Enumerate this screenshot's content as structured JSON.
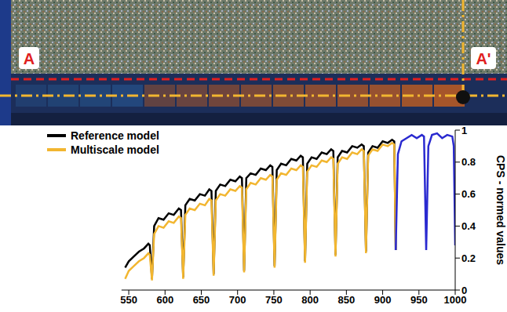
{
  "image": {
    "labels": [
      "A",
      "A'"
    ]
  },
  "chart_data": {
    "type": "line",
    "y_label": "CPS - normed values",
    "legend": "top-left",
    "grid": false,
    "xlim": [
      540,
      1000
    ],
    "xticks": [
      550,
      600,
      650,
      700,
      750,
      800,
      850,
      900,
      950,
      1000
    ],
    "ylim": [
      0,
      1
    ],
    "yticks": [
      0,
      0.2,
      0.4,
      0.6,
      0.8,
      1
    ],
    "x": [
      545,
      550,
      557,
      564,
      571,
      577,
      579,
      582,
      585,
      591,
      598,
      605,
      612,
      619,
      622,
      625,
      628,
      634,
      641,
      648,
      655,
      661,
      664,
      667,
      670,
      676,
      683,
      690,
      697,
      703,
      706,
      709,
      712,
      718,
      725,
      732,
      739,
      745,
      748,
      751,
      754,
      760,
      767,
      774,
      781,
      787,
      790,
      793,
      796,
      802,
      809,
      816,
      823,
      829,
      832,
      835,
      838,
      844,
      851,
      858,
      865,
      871,
      874,
      877,
      880,
      886,
      893,
      900,
      907,
      913,
      916,
      918,
      921,
      926,
      933,
      940,
      947,
      954,
      957,
      960,
      963,
      968,
      975,
      982,
      989,
      996,
      998,
      1000
    ],
    "series": [
      {
        "name": "Reference model",
        "color": "#000000",
        "values": [
          0.14,
          0.18,
          0.21,
          0.24,
          0.26,
          0.29,
          0.28,
          0.07,
          0.4,
          0.45,
          0.44,
          0.48,
          0.47,
          0.51,
          0.5,
          0.08,
          0.53,
          0.57,
          0.56,
          0.6,
          0.59,
          0.63,
          0.62,
          0.1,
          0.62,
          0.66,
          0.65,
          0.69,
          0.68,
          0.71,
          0.7,
          0.12,
          0.7,
          0.73,
          0.72,
          0.76,
          0.75,
          0.78,
          0.77,
          0.15,
          0.75,
          0.79,
          0.78,
          0.82,
          0.81,
          0.84,
          0.83,
          0.18,
          0.79,
          0.83,
          0.82,
          0.86,
          0.85,
          0.88,
          0.87,
          0.22,
          0.83,
          0.87,
          0.86,
          0.9,
          0.89,
          0.91,
          0.9,
          0.24,
          0.86,
          0.9,
          0.89,
          0.93,
          0.92,
          0.94,
          0.93,
          0.25,
          null,
          null,
          null,
          null,
          null,
          null,
          null,
          null,
          null,
          null,
          null,
          null,
          null,
          null,
          null,
          null
        ]
      },
      {
        "name": "Multiscale model",
        "color": "#f2b630",
        "values": [
          0.07,
          0.12,
          0.15,
          0.18,
          0.2,
          0.23,
          0.22,
          0.06,
          0.35,
          0.4,
          0.39,
          0.43,
          0.42,
          0.46,
          0.45,
          0.07,
          0.47,
          0.51,
          0.5,
          0.54,
          0.53,
          0.57,
          0.56,
          0.09,
          0.56,
          0.6,
          0.59,
          0.63,
          0.62,
          0.65,
          0.64,
          0.11,
          0.63,
          0.67,
          0.66,
          0.7,
          0.69,
          0.72,
          0.71,
          0.14,
          0.69,
          0.73,
          0.72,
          0.76,
          0.75,
          0.78,
          0.77,
          0.17,
          0.74,
          0.78,
          0.77,
          0.81,
          0.8,
          0.83,
          0.82,
          0.21,
          0.79,
          0.83,
          0.82,
          0.86,
          0.85,
          0.88,
          0.87,
          0.23,
          0.84,
          0.88,
          0.87,
          0.91,
          0.9,
          0.92,
          0.91,
          0.25,
          null,
          null,
          null,
          null,
          null,
          null,
          null,
          null,
          null,
          null,
          null,
          null,
          null,
          null,
          null,
          null
        ]
      },
      {
        "color": "#2a2ad0",
        "values": [
          null,
          null,
          null,
          null,
          null,
          null,
          null,
          null,
          null,
          null,
          null,
          null,
          null,
          null,
          null,
          null,
          null,
          null,
          null,
          null,
          null,
          null,
          null,
          null,
          null,
          null,
          null,
          null,
          null,
          null,
          null,
          null,
          null,
          null,
          null,
          null,
          null,
          null,
          null,
          null,
          null,
          null,
          null,
          null,
          null,
          null,
          null,
          null,
          null,
          null,
          null,
          null,
          null,
          null,
          null,
          null,
          null,
          null,
          null,
          null,
          null,
          null,
          null,
          null,
          null,
          null,
          null,
          null,
          null,
          null,
          null,
          0.25,
          0.85,
          0.93,
          0.95,
          0.97,
          0.95,
          0.97,
          0.96,
          0.25,
          0.9,
          0.97,
          0.98,
          0.95,
          0.97,
          0.96,
          0.9,
          0.28
        ]
      }
    ]
  }
}
